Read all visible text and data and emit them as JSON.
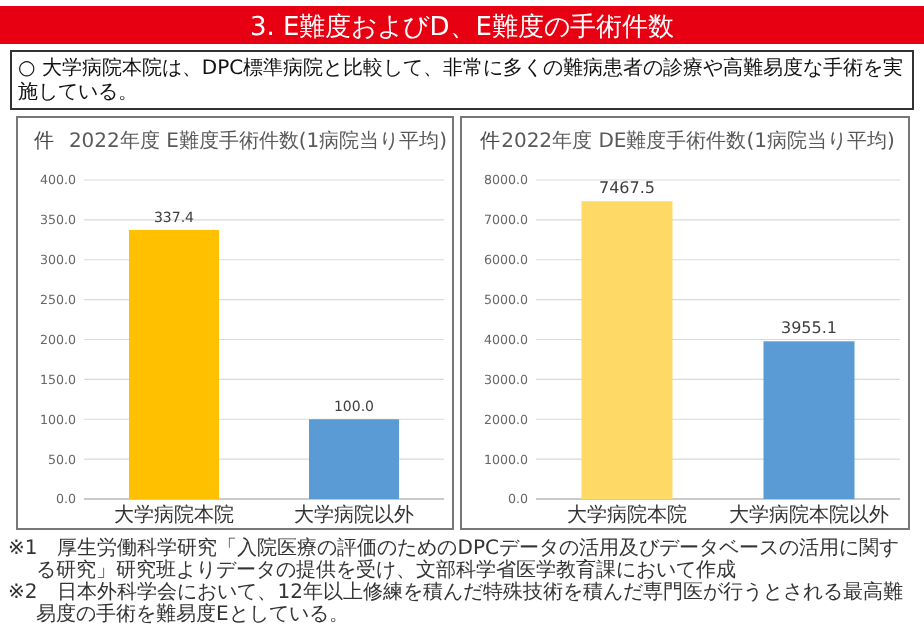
{
  "chart_data": [
    {
      "type": "other",
      "title": "3. E難度およびD、E難度の手術件数",
      "subtitle": "○ 大学病院本院は、DPC標準病院と比較して、非常に多くの難病患者の診療や高難易度な手術を実施している。",
      "annotations": [
        "※1　厚生労働科学研究「入院医療の評価のためのDPCデータの活用及びデータベースの活用に関する研究」研究班よりデータの提供を受け、文部科学省医学教育課において作成",
        "※2　日本外科学会において、12年以上修練を積んだ特殊技術を積んだ専門医が行うとされる最高難易度の手術を難易度Eとしている。"
      ]
    },
    {
      "type": "bar",
      "title": "2022年度 E難度手術件数(1病院当り平均)",
      "ylabel": "件",
      "categories": [
        "大学病院本院",
        "大学病院以外"
      ],
      "values": [
        337.4,
        100.0
      ],
      "colors": [
        "#ffc000",
        "#5b9bd5"
      ],
      "value_labels": [
        "337.4",
        "100.0"
      ],
      "ylim": [
        0,
        400
      ],
      "yticks": [
        {
          "value": 0,
          "label": "0.0"
        },
        {
          "value": 50,
          "label": "50.0"
        },
        {
          "value": 100,
          "label": "100.0"
        },
        {
          "value": 150,
          "label": "150.0"
        },
        {
          "value": 200,
          "label": "200.0"
        },
        {
          "value": 250,
          "label": "250.0"
        },
        {
          "value": 300,
          "label": "300.0"
        },
        {
          "value": 350,
          "label": "350.0"
        },
        {
          "value": 400,
          "label": "400.0"
        }
      ],
      "grid": "y"
    },
    {
      "type": "bar",
      "title": "2022年度 DE難度手術件数(1病院当り平均)",
      "ylabel": "件",
      "categories": [
        "大学病院本院",
        "大学病院本院以外"
      ],
      "values": [
        7467.5,
        3955.1
      ],
      "colors": [
        "#ffd966",
        "#5b9bd5"
      ],
      "value_labels": [
        "7467.5",
        "3955.1"
      ],
      "ylim": [
        0,
        8000
      ],
      "yticks": [
        {
          "value": 0,
          "label": "0.0"
        },
        {
          "value": 1000,
          "label": "1000.0"
        },
        {
          "value": 2000,
          "label": "2000.0"
        },
        {
          "value": 3000,
          "label": "3000.0"
        },
        {
          "value": 4000,
          "label": "4000.0"
        },
        {
          "value": 5000,
          "label": "5000.0"
        },
        {
          "value": 6000,
          "label": "6000.0"
        },
        {
          "value": 7000,
          "label": "7000.0"
        },
        {
          "value": 8000,
          "label": "8000.0"
        }
      ],
      "grid": "y"
    }
  ]
}
